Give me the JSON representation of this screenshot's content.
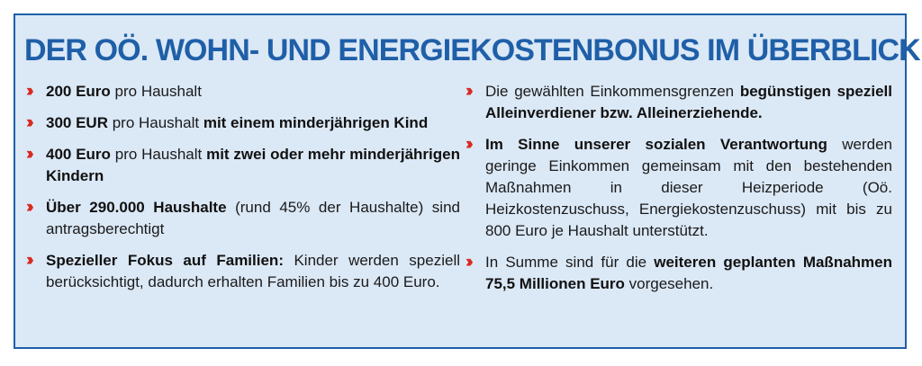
{
  "title": "DER OÖ. WOHN- UND ENERGIEKOSTENBONUS IM ÜBERBLICK:",
  "colors": {
    "title": "#1f5fa8",
    "box_background": "#dbe8f6",
    "border": "#1f5fa8",
    "bullet": "#d9261c"
  },
  "bullet_icon": "double-chevron-right-icon",
  "left_items": [
    {
      "segments": [
        {
          "text": "200 Euro",
          "bold": true
        },
        {
          "text": " pro Haushalt",
          "bold": false
        }
      ]
    },
    {
      "segments": [
        {
          "text": "300 EUR",
          "bold": true
        },
        {
          "text": " pro Haushalt ",
          "bold": false
        },
        {
          "text": "mit einem minderjährigen Kind",
          "bold": true
        }
      ]
    },
    {
      "segments": [
        {
          "text": "400 Euro",
          "bold": true
        },
        {
          "text": " pro Haushalt ",
          "bold": false
        },
        {
          "text": "mit zwei oder mehr minderjährigen Kindern",
          "bold": true
        }
      ]
    },
    {
      "segments": [
        {
          "text": "Über 290.000 Haushalte",
          "bold": true
        },
        {
          "text": " (rund 45% der Haushalte) sind antragsberechtigt",
          "bold": false
        }
      ]
    },
    {
      "segments": [
        {
          "text": "Spezieller Fokus auf Familien:",
          "bold": true
        },
        {
          "text": " Kinder werden speziell berücksichtigt, dadurch erhalten Familien bis zu 400 Euro.",
          "bold": false
        }
      ]
    }
  ],
  "right_items": [
    {
      "segments": [
        {
          "text": "Die gewählten Einkommensgrenzen ",
          "bold": false
        },
        {
          "text": "begünstigen speziell Alleinverdiener bzw. Alleinerziehende.",
          "bold": true
        }
      ]
    },
    {
      "segments": [
        {
          "text": "Im Sinne unserer sozialen Verantwortung",
          "bold": true
        },
        {
          "text": " werden geringe Einkommen gemeinsam mit den bestehenden Maßnahmen in dieser Heizperiode (Oö. Heizkostenzuschuss, Energiekostenzuschuss) mit bis zu 800 Euro je Haushalt unterstützt.",
          "bold": false
        }
      ]
    },
    {
      "segments": [
        {
          "text": "In Summe sind für die ",
          "bold": false
        },
        {
          "text": "weiteren geplanten Maßnahmen 75,5 Millionen Euro",
          "bold": true
        },
        {
          "text": " vorgesehen.",
          "bold": false
        }
      ]
    }
  ]
}
